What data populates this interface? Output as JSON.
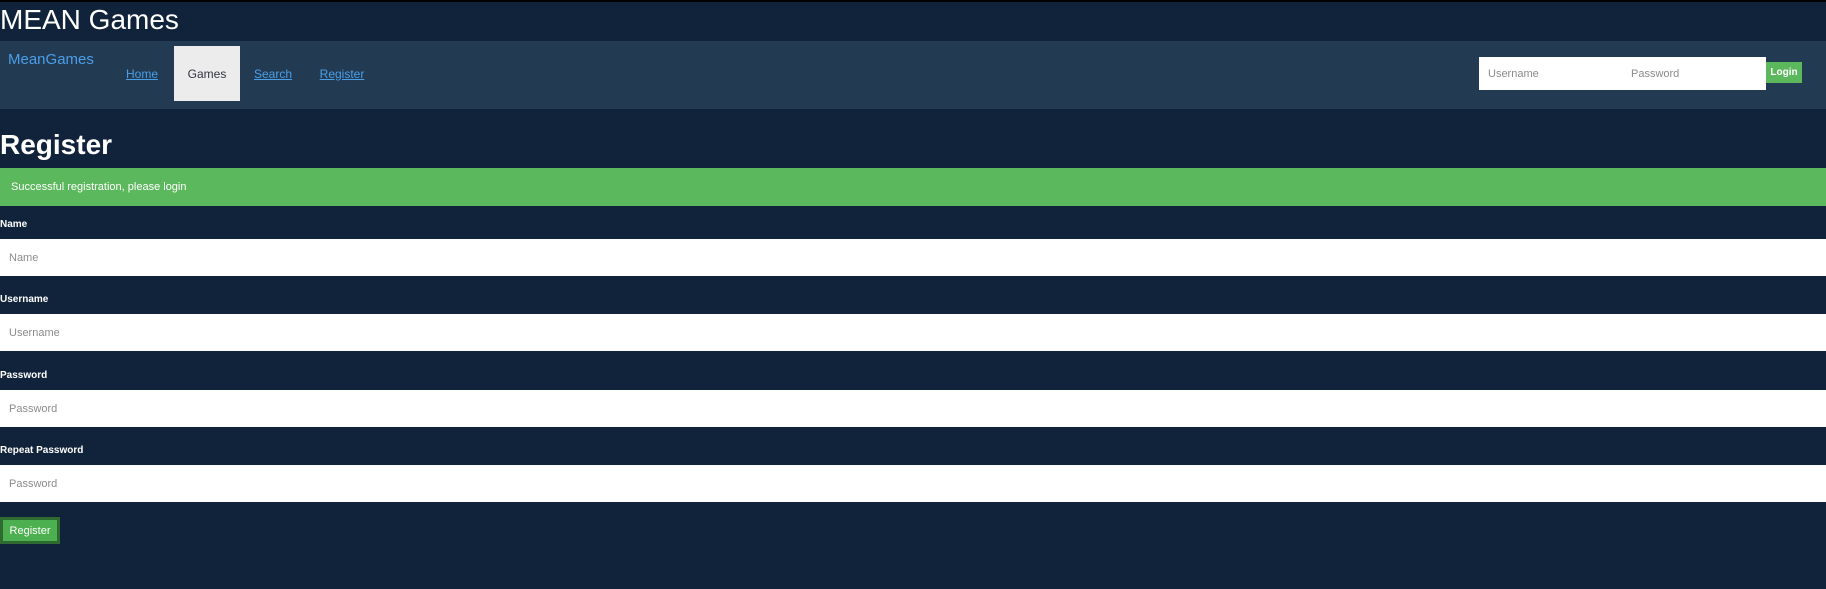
{
  "site_title": "MEAN Games",
  "navbar": {
    "brand": "MeanGames",
    "items": [
      {
        "label": "Home"
      },
      {
        "label": "Games"
      },
      {
        "label": "Search"
      },
      {
        "label": "Register"
      }
    ],
    "login": {
      "username_placeholder": "Username",
      "password_placeholder": "Password",
      "button_label": "Login"
    }
  },
  "page": {
    "heading": "Register",
    "alert": "Successful registration, please login",
    "fields": [
      {
        "label": "Name",
        "placeholder": "Name"
      },
      {
        "label": "Username",
        "placeholder": "Username"
      },
      {
        "label": "Password",
        "placeholder": "Password"
      },
      {
        "label": "Repeat Password",
        "placeholder": "Password"
      }
    ],
    "submit_label": "Register"
  },
  "colors": {
    "background": "#11233a",
    "navbar": "#233a53",
    "link": "#4a9fe8",
    "success": "#5cb85c"
  }
}
